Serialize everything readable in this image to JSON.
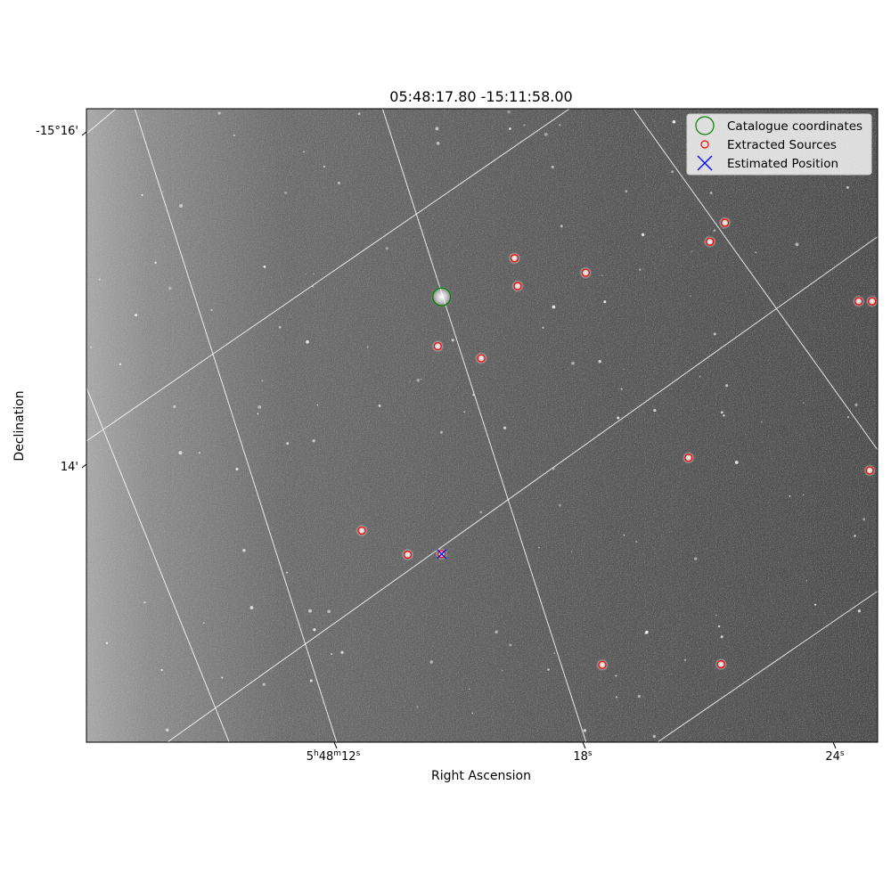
{
  "chart_data": {
    "type": "scatter",
    "title": "05:48:17.80 -15:11:58.00",
    "xlabel": "Right Ascension",
    "ylabel": "Declination",
    "x_ticks": [
      {
        "label": "5h48m12s",
        "parts": [
          "5",
          "h",
          "48",
          "m",
          "12",
          "s"
        ]
      },
      {
        "label": "18s",
        "parts": [
          "18",
          "s"
        ]
      },
      {
        "label": "24s",
        "parts": [
          "24",
          "s"
        ]
      }
    ],
    "y_ticks": [
      {
        "label": "-15°16'"
      },
      {
        "label": "14'"
      }
    ],
    "grid": true,
    "background": "grayscale sky image with stars",
    "legend": {
      "placement": "top-right",
      "entries": [
        {
          "label": "Catalogue coordinates",
          "marker": "open-circle-large",
          "color": "#008000"
        },
        {
          "label": "Extracted Sources",
          "marker": "open-circle-small",
          "color": "#ff0000"
        },
        {
          "label": "Estimated Position",
          "marker": "x",
          "color": "#0000ff"
        }
      ]
    },
    "series": [
      {
        "name": "Catalogue coordinates",
        "points": [
          [
            0.449,
            0.297
          ]
        ]
      },
      {
        "name": "Extracted Sources",
        "points": [
          [
            0.541,
            0.236
          ],
          [
            0.545,
            0.28
          ],
          [
            0.631,
            0.259
          ],
          [
            0.788,
            0.21
          ],
          [
            0.807,
            0.18
          ],
          [
            0.444,
            0.375
          ],
          [
            0.499,
            0.394
          ],
          [
            0.976,
            0.304
          ],
          [
            0.761,
            0.551
          ],
          [
            0.99,
            0.571
          ],
          [
            0.348,
            0.666
          ],
          [
            0.406,
            0.704
          ],
          [
            0.449,
            0.703
          ],
          [
            0.652,
            0.878
          ],
          [
            0.802,
            0.877
          ],
          [
            0.993,
            0.304
          ]
        ]
      },
      {
        "name": "Estimated Position",
        "points": [
          [
            0.449,
            0.703
          ]
        ]
      }
    ]
  }
}
